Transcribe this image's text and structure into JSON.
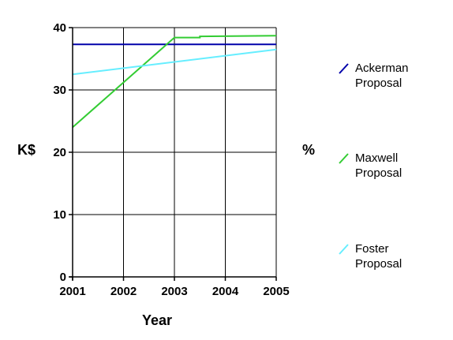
{
  "chart_data": {
    "type": "line",
    "title": "",
    "xlabel": "Year",
    "ylabel": "K$",
    "y2label": "%",
    "x": [
      2001,
      2002,
      2003,
      2004,
      2005
    ],
    "xlim": [
      2001,
      2005
    ],
    "ylim": [
      0,
      40
    ],
    "xticks": [
      "2001",
      "2002",
      "2003",
      "2004",
      "2005"
    ],
    "yticks": [
      "0",
      "10",
      "20",
      "30",
      "40"
    ],
    "grid": true,
    "legend_position": "right",
    "series": [
      {
        "name": "Ackerman\nProposal",
        "name_lines": [
          "Ackerman",
          "Proposal"
        ],
        "color": "#0000aa",
        "points": [
          [
            2001,
            37.3
          ],
          [
            2005,
            37.3
          ]
        ]
      },
      {
        "name": "Maxwell\nProposal",
        "name_lines": [
          "Maxwell",
          "Proposal"
        ],
        "color": "#33cc33",
        "points": [
          [
            2001,
            24.0
          ],
          [
            2003,
            38.4
          ],
          [
            2003.5,
            38.4
          ],
          [
            2003.5,
            38.6
          ],
          [
            2005,
            38.7
          ]
        ]
      },
      {
        "name": "Foster\nProposal",
        "name_lines": [
          "Foster",
          "Proposal"
        ],
        "color": "#66eeff",
        "points": [
          [
            2001,
            32.5
          ],
          [
            2005,
            36.5
          ]
        ]
      }
    ]
  }
}
